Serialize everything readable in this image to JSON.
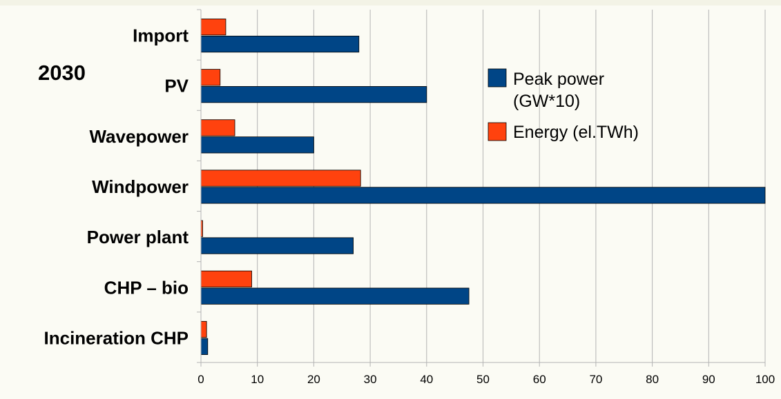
{
  "chart_data": {
    "type": "bar",
    "orientation": "horizontal",
    "annotation": "2030",
    "title": "",
    "xlabel": "",
    "ylabel": "",
    "categories": [
      "Import",
      "PV",
      "Wavepower",
      "Windpower",
      "Power plant",
      "CHP – bio",
      "Incineration CHP"
    ],
    "series": [
      {
        "name": "Peak power (GW*10)",
        "color": "#004586",
        "values": [
          28,
          40,
          20,
          100,
          27,
          47.5,
          1.2
        ]
      },
      {
        "name": "Energy (el.TWh)",
        "color": "#ff420e",
        "values": [
          4.4,
          3.4,
          6,
          28.3,
          0.3,
          9,
          1
        ]
      }
    ],
    "legend_lines": [
      [
        "Peak power",
        "(GW*10)"
      ],
      [
        "Energy (el.TWh)"
      ]
    ],
    "xlim": [
      0,
      100
    ],
    "xticks": [
      0,
      10,
      20,
      30,
      40,
      50,
      60,
      70,
      80,
      90,
      100
    ],
    "grid": "vertical",
    "legend_position": "top-right"
  }
}
